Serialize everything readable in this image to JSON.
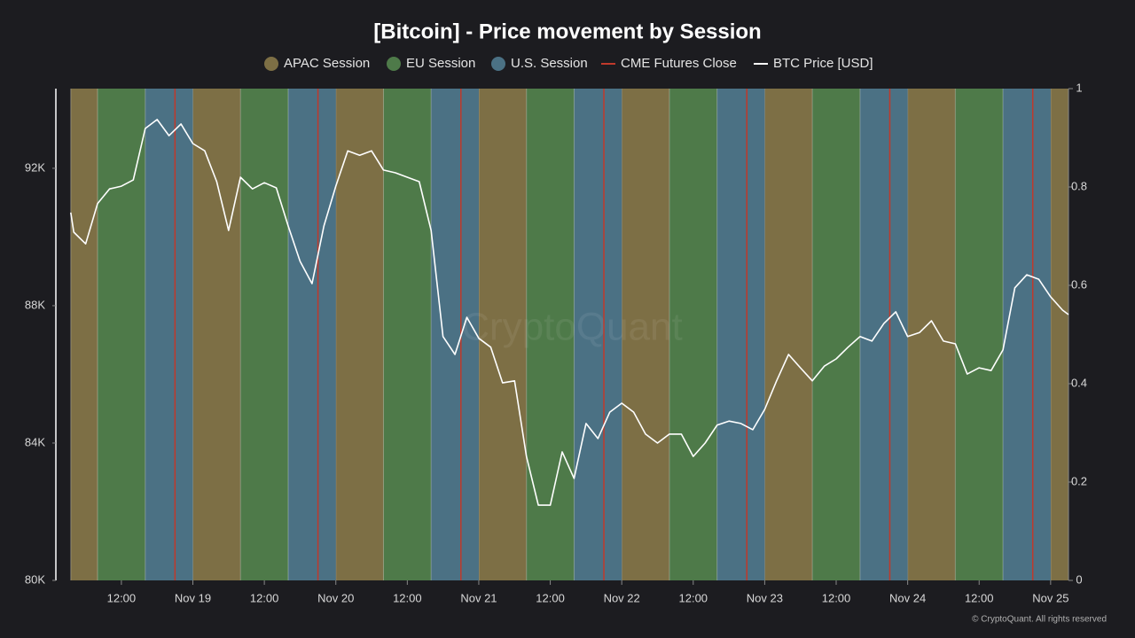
{
  "chart_data": {
    "type": "line",
    "title": "[Bitcoin] - Price movement by Session",
    "watermark": "CryptoQuant",
    "footer": "© CryptoQuant. All rights reserved",
    "series": [
      {
        "name": "BTC Price [USD]",
        "color": "#ffffff",
        "x": [
          "Nov 18 03:30",
          "Nov 18 04:00",
          "Nov 18 06:00",
          "Nov 18 08:00",
          "Nov 18 10:00",
          "Nov 18 12:00",
          "Nov 18 14:00",
          "Nov 18 16:00",
          "Nov 18 18:00",
          "Nov 18 20:00",
          "Nov 18 22:00",
          "Nov 19 00:00",
          "Nov 19 02:00",
          "Nov 19 04:00",
          "Nov 19 06:00",
          "Nov 19 08:00",
          "Nov 19 10:00",
          "Nov 19 12:00",
          "Nov 19 14:00",
          "Nov 19 16:00",
          "Nov 19 18:00",
          "Nov 19 20:00",
          "Nov 19 22:00",
          "Nov 20 00:00",
          "Nov 20 02:00",
          "Nov 20 04:00",
          "Nov 20 06:00",
          "Nov 20 08:00",
          "Nov 20 10:00",
          "Nov 20 12:00",
          "Nov 20 14:00",
          "Nov 20 16:00",
          "Nov 20 18:00",
          "Nov 20 20:00",
          "Nov 20 22:00",
          "Nov 21 00:00",
          "Nov 21 02:00",
          "Nov 21 04:00",
          "Nov 21 06:00",
          "Nov 21 08:00",
          "Nov 21 10:00",
          "Nov 21 12:00",
          "Nov 21 14:00",
          "Nov 21 16:00",
          "Nov 21 18:00",
          "Nov 21 20:00",
          "Nov 21 22:00",
          "Nov 22 00:00",
          "Nov 22 02:00",
          "Nov 22 04:00",
          "Nov 22 06:00",
          "Nov 22 08:00",
          "Nov 22 10:00",
          "Nov 22 12:00",
          "Nov 22 14:00",
          "Nov 22 16:00",
          "Nov 22 18:00",
          "Nov 22 20:00",
          "Nov 22 22:00",
          "Nov 23 00:00",
          "Nov 23 02:00",
          "Nov 23 04:00",
          "Nov 23 06:00",
          "Nov 23 08:00",
          "Nov 23 10:00",
          "Nov 23 12:00",
          "Nov 23 14:00",
          "Nov 23 16:00",
          "Nov 23 18:00",
          "Nov 23 20:00",
          "Nov 23 22:00",
          "Nov 24 00:00",
          "Nov 24 02:00",
          "Nov 24 04:00",
          "Nov 24 06:00",
          "Nov 24 08:00",
          "Nov 24 10:00",
          "Nov 24 12:00",
          "Nov 24 14:00",
          "Nov 24 16:00",
          "Nov 24 18:00",
          "Nov 24 20:00",
          "Nov 24 22:00",
          "Nov 25 00:00",
          "Nov 25 02:00",
          "Nov 25 03:00"
        ],
        "values": [
          90710,
          90140,
          89800,
          90970,
          91400,
          91480,
          91660,
          93160,
          93420,
          92950,
          93290,
          92720,
          92510,
          91610,
          90190,
          91740,
          91400,
          91580,
          91430,
          90320,
          89290,
          88640,
          90320,
          91480,
          92510,
          92380,
          92510,
          91950,
          91870,
          91740,
          91610,
          90190,
          87100,
          86580,
          87660,
          87050,
          86790,
          85750,
          85810,
          83610,
          82190,
          82190,
          83740,
          82970,
          84570,
          84130,
          84900,
          85160,
          84900,
          84260,
          84000,
          84260,
          84260,
          83610,
          84000,
          84520,
          84640,
          84570,
          84390,
          84980,
          85810,
          86580,
          86190,
          85810,
          86240,
          86450,
          86790,
          87100,
          86970,
          87480,
          87820,
          87100,
          87220,
          87560,
          86970,
          86890,
          86010,
          86190,
          86110,
          86710,
          88520,
          88900,
          88770,
          88260,
          87870,
          87740
        ]
      }
    ],
    "sessions": [
      {
        "name": "APAC Session",
        "color": "#7d6f45",
        "bands": [
          [
            "Nov 18 03:30",
            "Nov 18 08:00"
          ],
          [
            "Nov 19 00:00",
            "Nov 19 08:00"
          ],
          [
            "Nov 20 00:00",
            "Nov 20 08:00"
          ],
          [
            "Nov 21 00:00",
            "Nov 21 08:00"
          ],
          [
            "Nov 22 00:00",
            "Nov 22 08:00"
          ],
          [
            "Nov 23 00:00",
            "Nov 23 08:00"
          ],
          [
            "Nov 24 00:00",
            "Nov 24 08:00"
          ],
          [
            "Nov 25 00:00",
            "Nov 25 03:00"
          ]
        ]
      },
      {
        "name": "EU Session",
        "color": "#4e7a49",
        "bands": [
          [
            "Nov 18 08:00",
            "Nov 18 16:00"
          ],
          [
            "Nov 19 08:00",
            "Nov 19 16:00"
          ],
          [
            "Nov 20 08:00",
            "Nov 20 16:00"
          ],
          [
            "Nov 21 08:00",
            "Nov 21 16:00"
          ],
          [
            "Nov 22 08:00",
            "Nov 22 16:00"
          ],
          [
            "Nov 23 08:00",
            "Nov 23 16:00"
          ],
          [
            "Nov 24 08:00",
            "Nov 24 16:00"
          ]
        ]
      },
      {
        "name": "U.S. Session",
        "color": "#4b7184",
        "bands": [
          [
            "Nov 18 16:00",
            "Nov 19 00:00"
          ],
          [
            "Nov 19 16:00",
            "Nov 20 00:00"
          ],
          [
            "Nov 20 16:00",
            "Nov 21 00:00"
          ],
          [
            "Nov 21 16:00",
            "Nov 22 00:00"
          ],
          [
            "Nov 22 16:00",
            "Nov 23 00:00"
          ],
          [
            "Nov 23 16:00",
            "Nov 24 00:00"
          ],
          [
            "Nov 24 16:00",
            "Nov 25 00:00"
          ]
        ]
      }
    ],
    "cme_close": {
      "name": "CME Futures Close",
      "color": "#c0392b",
      "x": [
        "Nov 18 21:00",
        "Nov 19 21:00",
        "Nov 20 21:00",
        "Nov 21 21:00",
        "Nov 22 21:00",
        "Nov 23 21:00",
        "Nov 24 21:00"
      ]
    },
    "xlim": [
      "Nov 18 01:00",
      "Nov 25 03:00"
    ],
    "xticks": [
      {
        "value": "Nov 18 12:00",
        "label": "12:00"
      },
      {
        "value": "Nov 19 00:00",
        "label": "Nov 19"
      },
      {
        "value": "Nov 19 12:00",
        "label": "12:00"
      },
      {
        "value": "Nov 20 00:00",
        "label": "Nov 20"
      },
      {
        "value": "Nov 20 12:00",
        "label": "12:00"
      },
      {
        "value": "Nov 21 00:00",
        "label": "Nov 21"
      },
      {
        "value": "Nov 21 12:00",
        "label": "12:00"
      },
      {
        "value": "Nov 22 00:00",
        "label": "Nov 22"
      },
      {
        "value": "Nov 22 12:00",
        "label": "12:00"
      },
      {
        "value": "Nov 23 00:00",
        "label": "Nov 23"
      },
      {
        "value": "Nov 23 12:00",
        "label": "12:00"
      },
      {
        "value": "Nov 24 00:00",
        "label": "Nov 24"
      },
      {
        "value": "Nov 24 12:00",
        "label": "12:00"
      },
      {
        "value": "Nov 25 00:00",
        "label": "Nov 25"
      }
    ],
    "ylim": [
      80000,
      94320
    ],
    "yticks": [
      {
        "value": 80000,
        "label": "80K"
      },
      {
        "value": 84000,
        "label": "84K"
      },
      {
        "value": 88000,
        "label": "88K"
      },
      {
        "value": 92000,
        "label": "92K"
      }
    ],
    "y2lim": [
      0,
      1
    ],
    "y2ticks": [
      0,
      0.2,
      0.4,
      0.6,
      0.8,
      1
    ]
  }
}
